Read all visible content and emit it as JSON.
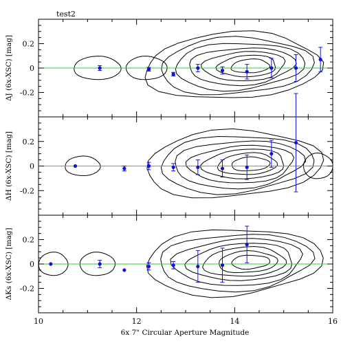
{
  "figure_label": "test2",
  "colors": {
    "frame": "#000000",
    "contour": "#000000",
    "zero_line": "#33cc33",
    "points": "#1010e0"
  },
  "chart_data": [
    {
      "type": "scatter",
      "panel": "top",
      "ylabel": "ΔJ (6x-XSC) [mag]",
      "xlim": [
        10,
        16
      ],
      "ylim": [
        -0.4,
        0.4
      ],
      "y_ticks": [
        "0.2",
        "0",
        "-0.2"
      ],
      "zero_line": 0,
      "points": [
        {
          "x": 11.25,
          "y": 0.0,
          "err": 0.02
        },
        {
          "x": 12.25,
          "y": -0.01,
          "err": 0.015
        },
        {
          "x": 12.75,
          "y": -0.05,
          "err": 0.015
        },
        {
          "x": 13.25,
          "y": 0.0,
          "err": 0.03
        },
        {
          "x": 13.75,
          "y": -0.02,
          "err": 0.03
        },
        {
          "x": 14.25,
          "y": -0.03,
          "err": 0.06
        },
        {
          "x": 14.75,
          "y": 0.0,
          "err": 0.08
        },
        {
          "x": 15.25,
          "y": 0.0,
          "err": 0.11
        },
        {
          "x": 15.75,
          "y": 0.07,
          "err": 0.1
        }
      ]
    },
    {
      "type": "scatter",
      "panel": "middle",
      "ylabel": "ΔH (6x-XSC) [mag]",
      "xlim": [
        10,
        16
      ],
      "ylim": [
        -0.4,
        0.4
      ],
      "y_ticks": [
        "0.2",
        "0",
        "-0.2"
      ],
      "zero_line": 0,
      "points": [
        {
          "x": 10.75,
          "y": 0.0,
          "err": 0.0
        },
        {
          "x": 11.75,
          "y": -0.02,
          "err": 0.02
        },
        {
          "x": 12.25,
          "y": 0.0,
          "err": 0.03
        },
        {
          "x": 12.75,
          "y": -0.01,
          "err": 0.03
        },
        {
          "x": 13.25,
          "y": -0.01,
          "err": 0.06
        },
        {
          "x": 13.75,
          "y": -0.02,
          "err": 0.07
        },
        {
          "x": 14.25,
          "y": -0.01,
          "err": 0.1
        },
        {
          "x": 14.75,
          "y": 0.1,
          "err": 0.11
        },
        {
          "x": 15.25,
          "y": 0.19,
          "err": 0.4
        }
      ]
    },
    {
      "type": "scatter",
      "panel": "bottom",
      "ylabel": "ΔKs (6x-XSC) [mag]",
      "xlabel": "6x 7\" Circular Aperture Magnitude",
      "xlim": [
        10,
        16
      ],
      "ylim": [
        -0.4,
        0.4
      ],
      "x_ticks": [
        "10",
        "12",
        "14",
        "16"
      ],
      "y_ticks": [
        "0.2",
        "0",
        "-0.2"
      ],
      "zero_line": 0,
      "points": [
        {
          "x": 10.25,
          "y": 0.0,
          "err": 0.0
        },
        {
          "x": 11.25,
          "y": 0.0,
          "err": 0.03
        },
        {
          "x": 11.75,
          "y": -0.05,
          "err": 0.0
        },
        {
          "x": 12.25,
          "y": -0.02,
          "err": 0.03
        },
        {
          "x": 12.75,
          "y": -0.01,
          "err": 0.03
        },
        {
          "x": 13.25,
          "y": -0.02,
          "err": 0.13
        },
        {
          "x": 13.75,
          "y": -0.01,
          "err": 0.14
        },
        {
          "x": 14.25,
          "y": 0.16,
          "err": 0.15
        }
      ]
    }
  ]
}
